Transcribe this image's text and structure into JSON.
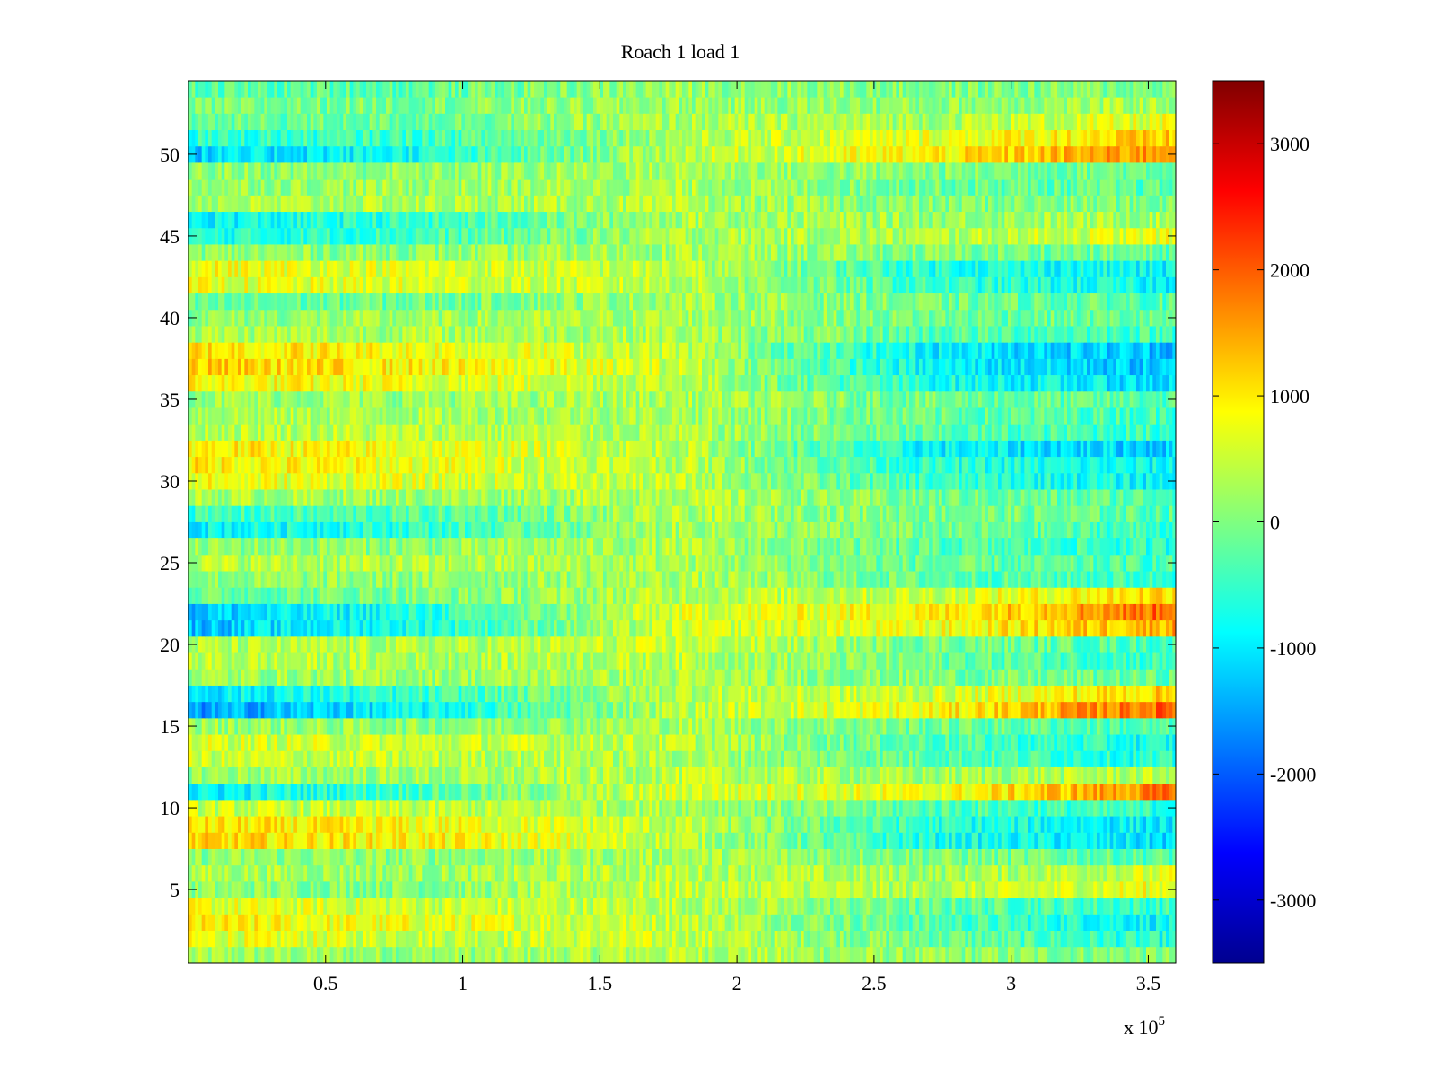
{
  "chart_data": {
    "type": "heatmap",
    "title": "Roach 1 load 1",
    "xlabel": "",
    "ylabel": "",
    "x_exponent_label": "x 10",
    "x_exponent": "5",
    "x_ticks": [
      "0.5",
      "1",
      "1.5",
      "2",
      "2.5",
      "3",
      "3.5"
    ],
    "x_tick_values": [
      50000,
      100000,
      150000,
      200000,
      250000,
      300000,
      350000
    ],
    "y_ticks": [
      "5",
      "10",
      "15",
      "20",
      "25",
      "30",
      "35",
      "40",
      "45",
      "50"
    ],
    "y_tick_values": [
      5,
      10,
      15,
      20,
      25,
      30,
      35,
      40,
      45,
      50
    ],
    "xlim": [
      0,
      360000
    ],
    "ylim": [
      0.5,
      54.5
    ],
    "rows": 54,
    "colormap": "jet",
    "colorbar": {
      "ticks": [
        "3000",
        "2000",
        "1000",
        "0",
        "-1000",
        "-2000",
        "-3000"
      ],
      "tick_values": [
        3000,
        2000,
        1000,
        0,
        -1000,
        -2000,
        -3000
      ],
      "clim": [
        -3500,
        3500
      ]
    },
    "row_profile": {
      "description_values_in_data_units_at_x": [
        0,
        90000,
        180000,
        270000,
        360000
      ],
      "rows": [
        {
          "y": 1,
          "v": [
            200,
            150,
            400,
            100,
            0
          ]
        },
        {
          "y": 2,
          "v": [
            700,
            500,
            500,
            -100,
            -700
          ]
        },
        {
          "y": 3,
          "v": [
            900,
            700,
            500,
            -300,
            -900
          ]
        },
        {
          "y": 4,
          "v": [
            700,
            500,
            400,
            -200,
            -500
          ]
        },
        {
          "y": 5,
          "v": [
            100,
            50,
            500,
            300,
            800
          ]
        },
        {
          "y": 6,
          "v": [
            300,
            200,
            400,
            200,
            600
          ]
        },
        {
          "y": 7,
          "v": [
            100,
            100,
            300,
            0,
            -300
          ]
        },
        {
          "y": 8,
          "v": [
            1100,
            900,
            400,
            -700,
            -1100
          ]
        },
        {
          "y": 9,
          "v": [
            1000,
            800,
            400,
            -600,
            -1000
          ]
        },
        {
          "y": 10,
          "v": [
            500,
            400,
            300,
            -300,
            -600
          ]
        },
        {
          "y": 11,
          "v": [
            -1000,
            -300,
            600,
            700,
            1800
          ]
        },
        {
          "y": 12,
          "v": [
            200,
            200,
            400,
            200,
            400
          ]
        },
        {
          "y": 13,
          "v": [
            500,
            400,
            300,
            -200,
            -700
          ]
        },
        {
          "y": 14,
          "v": [
            600,
            500,
            400,
            -300,
            -800
          ]
        },
        {
          "y": 15,
          "v": [
            200,
            100,
            300,
            -100,
            -400
          ]
        },
        {
          "y": 16,
          "v": [
            -1600,
            -800,
            400,
            800,
            2000
          ]
        },
        {
          "y": 17,
          "v": [
            -1000,
            -500,
            400,
            500,
            1200
          ]
        },
        {
          "y": 18,
          "v": [
            200,
            200,
            300,
            0,
            -200
          ]
        },
        {
          "y": 19,
          "v": [
            400,
            300,
            400,
            -100,
            -500
          ]
        },
        {
          "y": 20,
          "v": [
            300,
            300,
            500,
            0,
            -400
          ]
        },
        {
          "y": 21,
          "v": [
            -1300,
            -600,
            500,
            700,
            1500
          ]
        },
        {
          "y": 22,
          "v": [
            -1300,
            -600,
            600,
            900,
            2000
          ]
        },
        {
          "y": 23,
          "v": [
            -200,
            0,
            400,
            500,
            1200
          ]
        },
        {
          "y": 24,
          "v": [
            100,
            100,
            300,
            -200,
            -500
          ]
        },
        {
          "y": 25,
          "v": [
            400,
            300,
            300,
            -200,
            -400
          ]
        },
        {
          "y": 26,
          "v": [
            100,
            100,
            300,
            -300,
            -600
          ]
        },
        {
          "y": 27,
          "v": [
            -900,
            -500,
            300,
            -100,
            -500
          ]
        },
        {
          "y": 28,
          "v": [
            -500,
            -300,
            300,
            0,
            -300
          ]
        },
        {
          "y": 29,
          "v": [
            300,
            200,
            400,
            -100,
            -300
          ]
        },
        {
          "y": 30,
          "v": [
            800,
            600,
            400,
            -500,
            -900
          ]
        },
        {
          "y": 31,
          "v": [
            1000,
            700,
            400,
            -600,
            -900
          ]
        },
        {
          "y": 32,
          "v": [
            1000,
            700,
            400,
            -900,
            -1200
          ]
        },
        {
          "y": 33,
          "v": [
            400,
            400,
            300,
            -300,
            -500
          ]
        },
        {
          "y": 34,
          "v": [
            300,
            300,
            300,
            -200,
            -400
          ]
        },
        {
          "y": 35,
          "v": [
            200,
            200,
            300,
            -100,
            -300
          ]
        },
        {
          "y": 36,
          "v": [
            900,
            700,
            400,
            -700,
            -1100
          ]
        },
        {
          "y": 37,
          "v": [
            1200,
            900,
            500,
            -900,
            -1300
          ]
        },
        {
          "y": 38,
          "v": [
            1100,
            800,
            400,
            -900,
            -1300
          ]
        },
        {
          "y": 39,
          "v": [
            300,
            300,
            300,
            -300,
            -400
          ]
        },
        {
          "y": 40,
          "v": [
            100,
            200,
            300,
            -100,
            -200
          ]
        },
        {
          "y": 41,
          "v": [
            -300,
            -100,
            300,
            -100,
            -300
          ]
        },
        {
          "y": 42,
          "v": [
            700,
            600,
            400,
            -500,
            -900
          ]
        },
        {
          "y": 43,
          "v": [
            800,
            600,
            400,
            -600,
            -900
          ]
        },
        {
          "y": 44,
          "v": [
            100,
            100,
            300,
            0,
            -200
          ]
        },
        {
          "y": 45,
          "v": [
            -700,
            -400,
            300,
            300,
            700
          ]
        },
        {
          "y": 46,
          "v": [
            -900,
            -500,
            300,
            200,
            300
          ]
        },
        {
          "y": 47,
          "v": [
            300,
            300,
            300,
            0,
            0
          ]
        },
        {
          "y": 48,
          "v": [
            200,
            200,
            300,
            -100,
            -300
          ]
        },
        {
          "y": 49,
          "v": [
            100,
            100,
            300,
            0,
            -100
          ]
        },
        {
          "y": 50,
          "v": [
            -1200,
            -700,
            400,
            900,
            1700
          ]
        },
        {
          "y": 51,
          "v": [
            -600,
            -400,
            300,
            700,
            1200
          ]
        },
        {
          "y": 52,
          "v": [
            -200,
            -100,
            300,
            300,
            700
          ]
        },
        {
          "y": 53,
          "v": [
            -100,
            0,
            200,
            100,
            300
          ]
        },
        {
          "y": 54,
          "v": [
            -300,
            -200,
            200,
            0,
            0
          ]
        }
      ]
    }
  }
}
